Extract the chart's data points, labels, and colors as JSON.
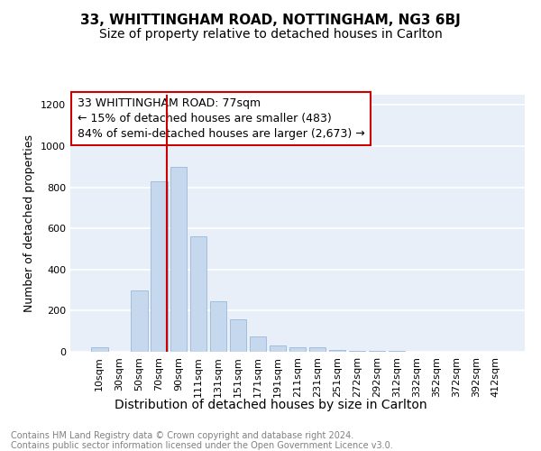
{
  "title": "33, WHITTINGHAM ROAD, NOTTINGHAM, NG3 6BJ",
  "subtitle": "Size of property relative to detached houses in Carlton",
  "xlabel": "Distribution of detached houses by size in Carlton",
  "ylabel": "Number of detached properties",
  "bar_categories": [
    "10sqm",
    "30sqm",
    "50sqm",
    "70sqm",
    "90sqm",
    "111sqm",
    "131sqm",
    "151sqm",
    "171sqm",
    "191sqm",
    "211sqm",
    "231sqm",
    "251sqm",
    "272sqm",
    "292sqm",
    "312sqm",
    "332sqm",
    "352sqm",
    "372sqm",
    "392sqm",
    "412sqm"
  ],
  "bar_values": [
    20,
    0,
    300,
    830,
    900,
    560,
    245,
    160,
    75,
    30,
    20,
    20,
    10,
    5,
    5,
    3,
    2,
    2,
    1,
    0,
    0
  ],
  "bar_color": "#c5d8ee",
  "bar_edge_color": "#9ab8d8",
  "annotation_text": "33 WHITTINGHAM ROAD: 77sqm\n← 15% of detached houses are smaller (483)\n84% of semi-detached houses are larger (2,673) →",
  "vline_color": "#cc0000",
  "annotation_box_edge": "#cc0000",
  "ylim": [
    0,
    1250
  ],
  "yticks": [
    0,
    200,
    400,
    600,
    800,
    1000,
    1200
  ],
  "background_color": "#e8eff8",
  "footer_text": "Contains HM Land Registry data © Crown copyright and database right 2024.\nContains public sector information licensed under the Open Government Licence v3.0.",
  "title_fontsize": 11,
  "subtitle_fontsize": 10,
  "xlabel_fontsize": 10,
  "ylabel_fontsize": 9,
  "tick_fontsize": 8,
  "annotation_fontsize": 9,
  "vline_x_index": 3.42
}
